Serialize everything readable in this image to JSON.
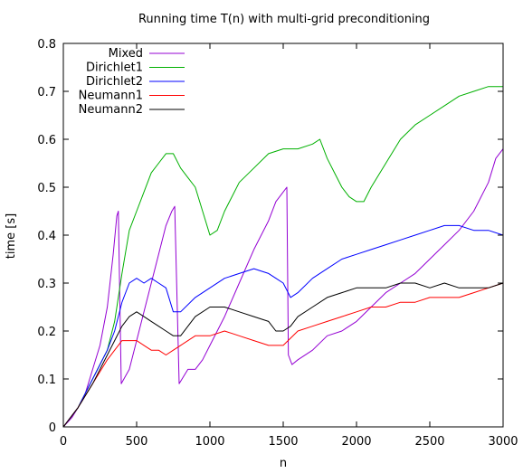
{
  "chart_data": {
    "type": "line",
    "title": "Running time T(n) with multi-grid preconditioning",
    "xlabel": "n",
    "ylabel": "time [s]",
    "xlim": [
      0,
      3000
    ],
    "ylim": [
      0,
      0.8
    ],
    "xticks": [
      0,
      500,
      1000,
      1500,
      2000,
      2500,
      3000
    ],
    "yticks": [
      0,
      0.1,
      0.2,
      0.3,
      0.4,
      0.5,
      0.6,
      0.7,
      0.8
    ],
    "xtick_labels": [
      "0",
      "500",
      "1000",
      "1500",
      "2000",
      "2500",
      "3000"
    ],
    "ytick_labels": [
      "0",
      "0.1",
      "0.2",
      "0.3",
      "0.4",
      "0.5",
      "0.6",
      "0.7",
      "0.8"
    ],
    "grid": false,
    "legend_position": "top-left",
    "series": [
      {
        "name": "Mixed",
        "color": "#9400d3",
        "x": [
          0,
          60,
          100,
          150,
          200,
          250,
          300,
          340,
          365,
          375,
          395,
          450,
          500,
          550,
          600,
          650,
          700,
          740,
          760,
          790,
          850,
          900,
          950,
          1000,
          1100,
          1200,
          1300,
          1400,
          1450,
          1500,
          1525,
          1535,
          1560,
          1600,
          1700,
          1800,
          1900,
          2000,
          2100,
          2200,
          2300,
          2400,
          2500,
          2600,
          2700,
          2800,
          2900,
          2950,
          3000
        ],
        "y": [
          0,
          0.02,
          0.04,
          0.07,
          0.12,
          0.17,
          0.25,
          0.36,
          0.44,
          0.45,
          0.09,
          0.12,
          0.18,
          0.24,
          0.3,
          0.36,
          0.42,
          0.45,
          0.46,
          0.09,
          0.12,
          0.12,
          0.14,
          0.17,
          0.23,
          0.3,
          0.37,
          0.43,
          0.47,
          0.49,
          0.5,
          0.15,
          0.13,
          0.14,
          0.16,
          0.19,
          0.2,
          0.22,
          0.25,
          0.28,
          0.3,
          0.32,
          0.35,
          0.38,
          0.41,
          0.45,
          0.51,
          0.56,
          0.58
        ]
      },
      {
        "name": "Dirichlet1",
        "color": "#00b000",
        "x": [
          0,
          100,
          200,
          300,
          350,
          400,
          450,
          500,
          550,
          600,
          650,
          700,
          750,
          800,
          850,
          900,
          950,
          1000,
          1050,
          1100,
          1150,
          1200,
          1300,
          1400,
          1500,
          1600,
          1700,
          1750,
          1800,
          1850,
          1900,
          1950,
          2000,
          2050,
          2100,
          2200,
          2300,
          2400,
          2500,
          2600,
          2700,
          2800,
          2900,
          3000
        ],
        "y": [
          0,
          0.04,
          0.1,
          0.16,
          0.22,
          0.32,
          0.41,
          0.45,
          0.49,
          0.53,
          0.55,
          0.57,
          0.57,
          0.54,
          0.52,
          0.5,
          0.45,
          0.4,
          0.41,
          0.45,
          0.48,
          0.51,
          0.54,
          0.57,
          0.58,
          0.58,
          0.59,
          0.6,
          0.56,
          0.53,
          0.5,
          0.48,
          0.47,
          0.47,
          0.5,
          0.55,
          0.6,
          0.63,
          0.65,
          0.67,
          0.69,
          0.7,
          0.71,
          0.71
        ]
      },
      {
        "name": "Dirichlet2",
        "color": "#0000ff",
        "x": [
          0,
          100,
          200,
          300,
          350,
          400,
          450,
          500,
          550,
          600,
          650,
          700,
          750,
          800,
          900,
          1000,
          1100,
          1200,
          1300,
          1400,
          1450,
          1500,
          1550,
          1600,
          1700,
          1800,
          1900,
          2000,
          2100,
          2200,
          2300,
          2400,
          2500,
          2600,
          2700,
          2800,
          2900,
          3000
        ],
        "y": [
          0,
          0.04,
          0.1,
          0.16,
          0.2,
          0.26,
          0.3,
          0.31,
          0.3,
          0.31,
          0.3,
          0.29,
          0.24,
          0.24,
          0.27,
          0.29,
          0.31,
          0.32,
          0.33,
          0.32,
          0.31,
          0.3,
          0.27,
          0.28,
          0.31,
          0.33,
          0.35,
          0.36,
          0.37,
          0.38,
          0.39,
          0.4,
          0.41,
          0.42,
          0.42,
          0.41,
          0.41,
          0.4
        ]
      },
      {
        "name": "Neumann1",
        "color": "#ff0000",
        "x": [
          0,
          100,
          200,
          300,
          350,
          400,
          450,
          500,
          550,
          600,
          650,
          700,
          750,
          800,
          900,
          1000,
          1100,
          1200,
          1300,
          1400,
          1500,
          1600,
          1700,
          1800,
          1900,
          2000,
          2100,
          2200,
          2300,
          2400,
          2500,
          2600,
          2700,
          2800,
          2900,
          3000
        ],
        "y": [
          0,
          0.04,
          0.09,
          0.14,
          0.16,
          0.18,
          0.18,
          0.18,
          0.17,
          0.16,
          0.16,
          0.15,
          0.16,
          0.17,
          0.19,
          0.19,
          0.2,
          0.19,
          0.18,
          0.17,
          0.17,
          0.2,
          0.21,
          0.22,
          0.23,
          0.24,
          0.25,
          0.25,
          0.26,
          0.26,
          0.27,
          0.27,
          0.27,
          0.28,
          0.29,
          0.3
        ]
      },
      {
        "name": "Neumann2",
        "color": "#000000",
        "x": [
          0,
          100,
          200,
          300,
          350,
          400,
          450,
          500,
          550,
          600,
          650,
          700,
          750,
          800,
          900,
          1000,
          1100,
          1200,
          1300,
          1400,
          1450,
          1500,
          1550,
          1600,
          1700,
          1800,
          1900,
          2000,
          2100,
          2200,
          2300,
          2400,
          2500,
          2600,
          2700,
          2800,
          2900,
          3000
        ],
        "y": [
          0,
          0.04,
          0.09,
          0.15,
          0.18,
          0.21,
          0.23,
          0.24,
          0.23,
          0.22,
          0.21,
          0.2,
          0.19,
          0.19,
          0.23,
          0.25,
          0.25,
          0.24,
          0.23,
          0.22,
          0.2,
          0.2,
          0.21,
          0.23,
          0.25,
          0.27,
          0.28,
          0.29,
          0.29,
          0.29,
          0.3,
          0.3,
          0.29,
          0.3,
          0.29,
          0.29,
          0.29,
          0.3
        ]
      }
    ]
  }
}
